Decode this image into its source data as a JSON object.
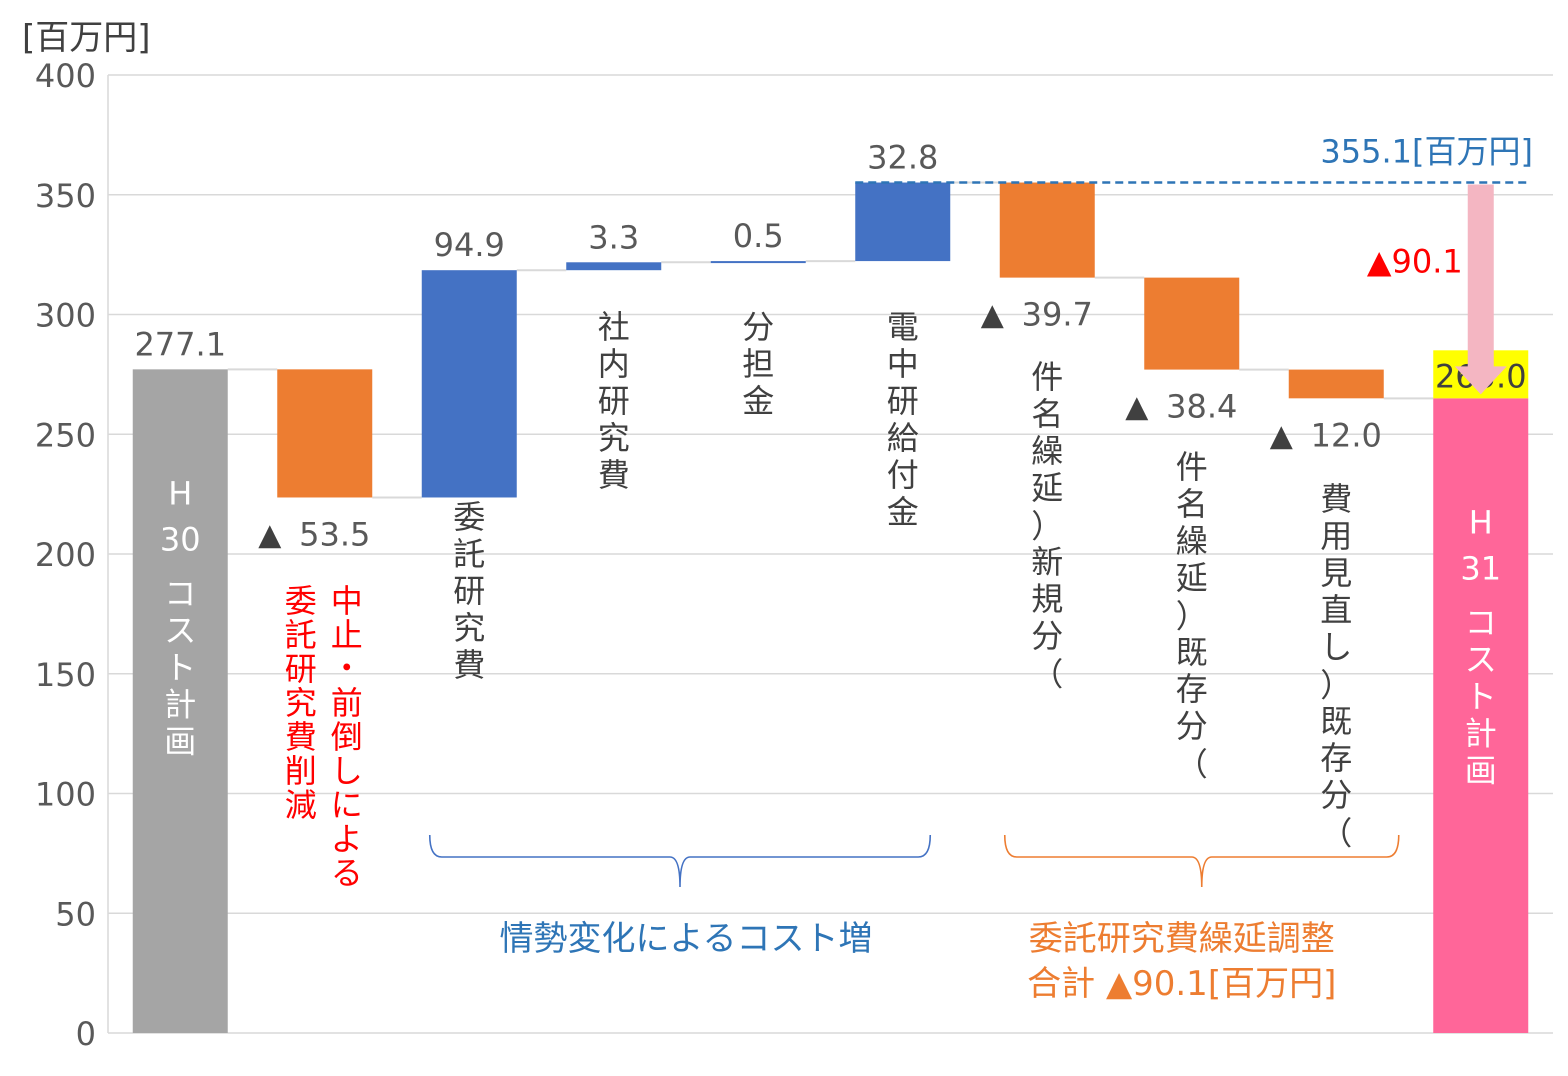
{
  "chart_data": {
    "type": "waterfall",
    "unit": "[百万円]",
    "ylim": [
      0,
      400
    ],
    "yticks": [
      0,
      50,
      100,
      150,
      200,
      250,
      300,
      350,
      400
    ],
    "grid": true,
    "bars": [
      {
        "id": "h30",
        "kind": "total",
        "start": 0,
        "end": 277.1,
        "value_label": "277.1",
        "label": "H\n30\nコスト計画",
        "color": "#a5a5a5"
      },
      {
        "id": "cut",
        "kind": "decrease",
        "start": 277.1,
        "end": 223.6,
        "value_label": "▲ 53.5",
        "label": "中止・前倒しによる\n委託研究費削減",
        "color": "#ed7d31",
        "label_color": "#ff0000"
      },
      {
        "id": "itaku",
        "kind": "increase",
        "start": 223.6,
        "end": 318.5,
        "value_label": "94.9",
        "label": "委託研究費",
        "color": "#4472c4"
      },
      {
        "id": "shanai",
        "kind": "increase",
        "start": 318.5,
        "end": 321.8,
        "value_label": "3.3",
        "label": "社内研究費",
        "color": "#4472c4"
      },
      {
        "id": "buntan",
        "kind": "increase",
        "start": 321.8,
        "end": 322.3,
        "value_label": "0.5",
        "label": "分担金",
        "color": "#4472c4"
      },
      {
        "id": "denchu",
        "kind": "increase",
        "start": 322.3,
        "end": 355.1,
        "value_label": "32.8",
        "label": "電中研給付金",
        "color": "#4472c4"
      },
      {
        "id": "new",
        "kind": "decrease",
        "start": 355.1,
        "end": 315.4,
        "value_label": "▲ 39.7",
        "label": "件名繰延（新規分）",
        "color": "#ed7d31"
      },
      {
        "id": "existing",
        "kind": "decrease",
        "start": 315.4,
        "end": 277.0,
        "value_label": "▲ 38.4",
        "label": "件名繰延（既存分）",
        "color": "#ed7d31"
      },
      {
        "id": "review",
        "kind": "decrease",
        "start": 277.0,
        "end": 265.0,
        "value_label": "▲ 12.0",
        "label": "費用見直し（既存分）",
        "color": "#ed7d31"
      },
      {
        "id": "h31",
        "kind": "total",
        "start": 0,
        "end": 265.0,
        "value_label": "265.0",
        "label": "H\n31\nコスト計画",
        "color": "#ff6699",
        "value_highlight": "#ffff00"
      }
    ],
    "annotations": {
      "peak_label": "355.1[百万円]",
      "peak_value": 355.1,
      "arrow_label": "▲90.1",
      "group1_label": "情勢変化によるコスト増",
      "group2_line1": "委託研究費繰延調整",
      "group2_line2": "合計 ▲90.1[百万円]"
    },
    "colors": {
      "increase": "#4472c4",
      "decrease": "#ed7d31",
      "axis_text": "#595959",
      "grid": "#d9d9d9",
      "peak": "#2e75b6",
      "red": "#ff0000",
      "arrow": "#f4b6c2"
    }
  }
}
